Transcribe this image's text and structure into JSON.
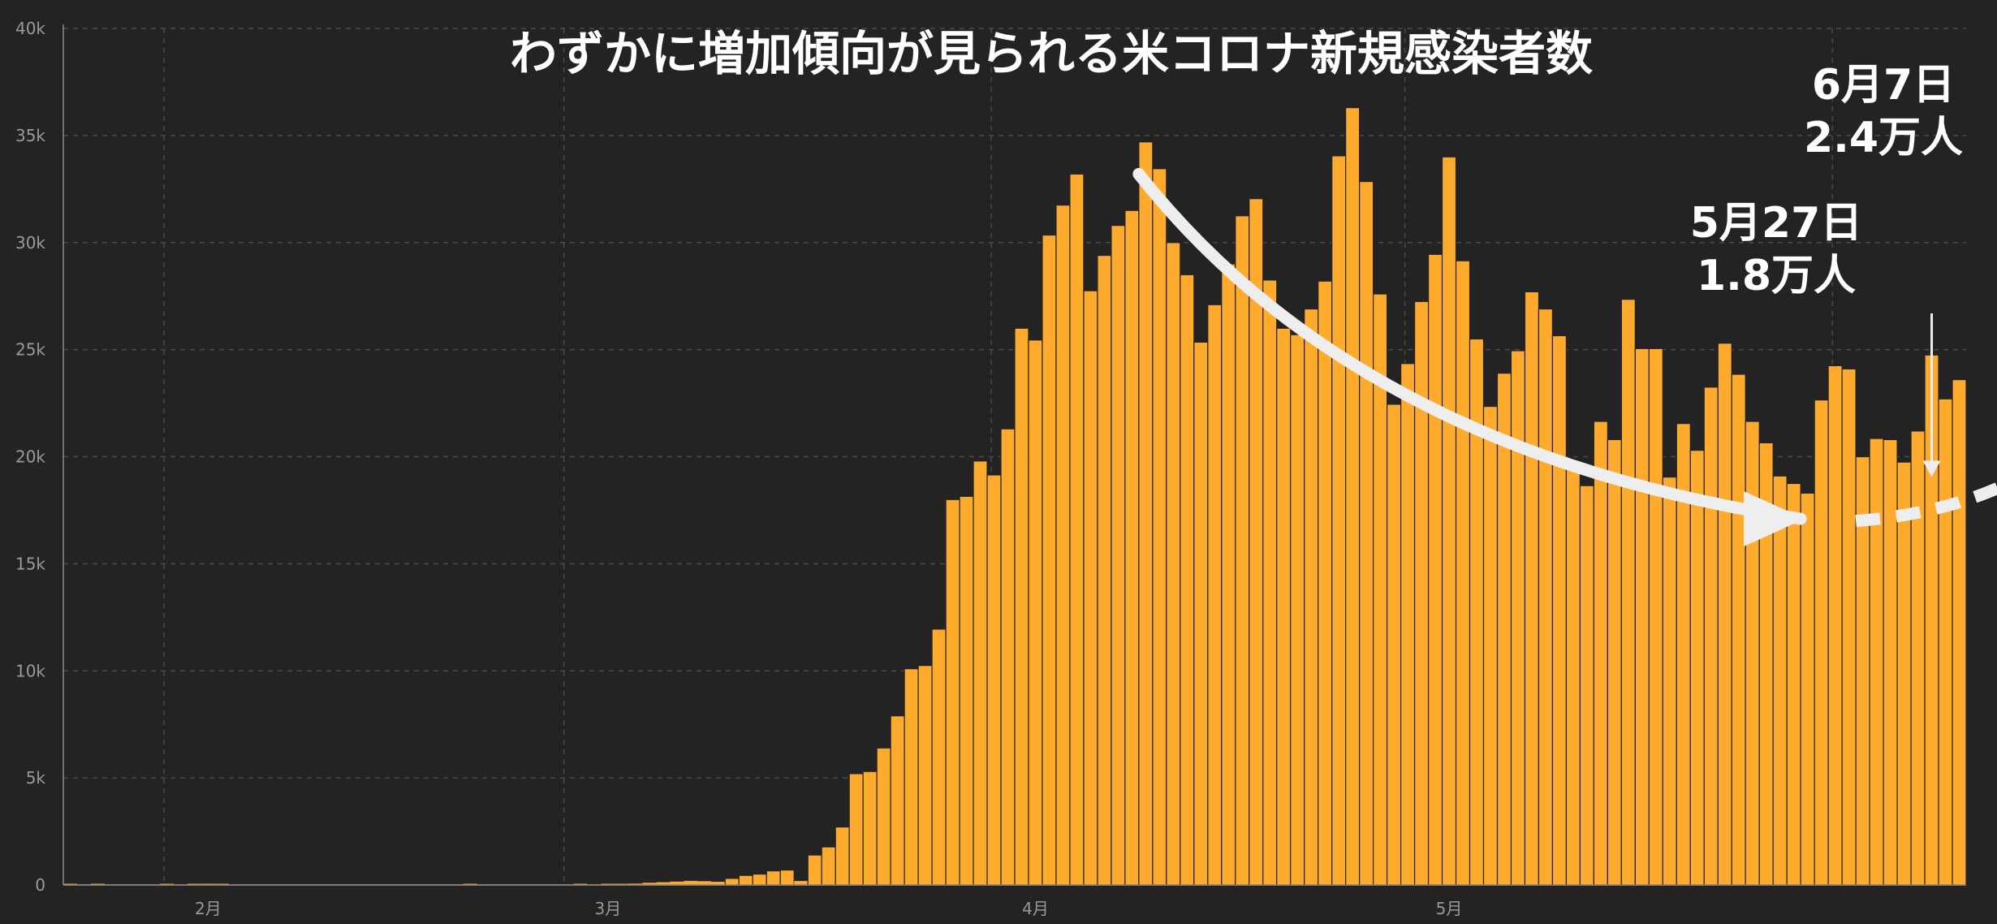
{
  "colors": {
    "background": "#232323",
    "bar": "#FDAA2D",
    "bar_edge": "#232323",
    "grid": "#4a4a4a",
    "axis": "#8a8a8a",
    "arrow": "#EEEEEE"
  },
  "chart_data": {
    "type": "bar",
    "title": "わずかに増加傾向が見られる米コロナ新規感染者数",
    "xlabel": "",
    "ylabel": "",
    "ylim": [
      0,
      40000
    ],
    "y_ticks": [
      0,
      5000,
      10000,
      15000,
      20000,
      25000,
      30000,
      35000,
      40000
    ],
    "y_tick_labels": [
      "0",
      "5k",
      "10k",
      "15k",
      "20k",
      "25k",
      "30k",
      "35k",
      "40k"
    ],
    "x_tick_labels": [
      {
        "label": "2月",
        "day_index": 10
      },
      {
        "label": "3月",
        "day_index": 39
      },
      {
        "label": "4月",
        "day_index": 70
      },
      {
        "label": "5月",
        "day_index": 100
      }
    ],
    "grid": true,
    "values": [
      2,
      0,
      1,
      0,
      0,
      0,
      0,
      1,
      0,
      1,
      3,
      1,
      0,
      0,
      0,
      0,
      0,
      0,
      0,
      0,
      0,
      0,
      0,
      0,
      0,
      0,
      0,
      0,
      0,
      2,
      0,
      0,
      0,
      0,
      0,
      0,
      0,
      1,
      0,
      18,
      34,
      65,
      104,
      130,
      160,
      195,
      180,
      150,
      310,
      450,
      510,
      660,
      700,
      190,
      1400,
      1780,
      2710,
      5200,
      5300,
      6400,
      7900,
      10100,
      10250,
      11950,
      18000,
      18150,
      19800,
      19150,
      21300,
      26000,
      25450,
      30350,
      31750,
      33200,
      27750,
      29400,
      30800,
      31500,
      34700,
      33450,
      30000,
      28500,
      25350,
      27100,
      29000,
      31250,
      32050,
      28250,
      26000,
      25700,
      26900,
      28200,
      34050,
      36300,
      32850,
      27600,
      22450,
      24350,
      27250,
      29450,
      34000,
      29150,
      25500,
      22350,
      23900,
      24950,
      27700,
      26900,
      25650,
      19800,
      18650,
      21650,
      20800,
      27350,
      25050,
      25050,
      19050,
      21550,
      20300,
      23250,
      25300,
      23850,
      21650,
      20650,
      19100,
      18750,
      18300,
      22650,
      24250,
      24100,
      20000,
      20850,
      20800,
      19750,
      21200,
      24750,
      22700,
      23600
    ],
    "annotations": [
      {
        "day_index": 135,
        "value": 18300,
        "line1": "5月27日",
        "line2": "1.8万人"
      },
      {
        "day_index": 147,
        "value": 23600,
        "line1": "6月7日",
        "line2": "2.4万人"
      }
    ]
  }
}
